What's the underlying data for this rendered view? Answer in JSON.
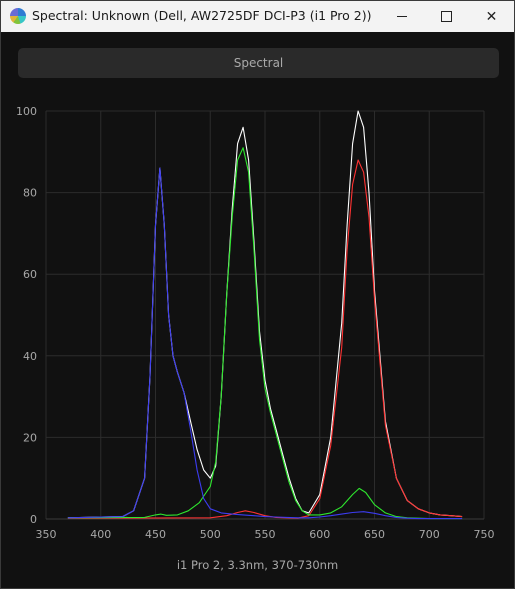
{
  "window": {
    "title": "Spectral: Unknown (Dell, AW2725DF DCI-P3 (i1 Pro 2))",
    "controls": [
      "minimize",
      "maximize",
      "close"
    ]
  },
  "tabs": [
    {
      "label": "Spectral",
      "selected": true
    }
  ],
  "chart_data": {
    "type": "line",
    "xlabel": "i1 Pro 2, 3.3nm, 370-730nm",
    "ylabel": "",
    "xlim": [
      350,
      750
    ],
    "ylim": [
      0,
      100
    ],
    "x_ticks": [
      350,
      400,
      450,
      500,
      550,
      600,
      650,
      700,
      750
    ],
    "y_ticks": [
      0,
      20,
      40,
      60,
      80,
      100
    ],
    "grid": true,
    "background": "#111111",
    "grid_color": "#2c2c2c",
    "series": [
      {
        "color": "#ffffff",
        "x": [
          370,
          420,
          430,
          440,
          445,
          450,
          454,
          458,
          462,
          466,
          470,
          476,
          482,
          488,
          494,
          500,
          505,
          510,
          515,
          520,
          525,
          530,
          535,
          540,
          545,
          550,
          555,
          560,
          566,
          572,
          578,
          584,
          590,
          600,
          610,
          620,
          625,
          630,
          635,
          640,
          645,
          650,
          660,
          670,
          680,
          690,
          700,
          710,
          720,
          730
        ],
        "y": [
          0.3,
          0.6,
          2,
          10,
          35,
          72,
          86,
          72,
          50,
          40,
          36,
          31,
          24,
          17,
          12,
          10,
          13,
          30,
          55,
          76,
          92,
          96,
          88,
          68,
          46,
          34,
          27,
          22,
          16,
          10,
          5,
          2,
          1.5,
          6,
          20,
          48,
          72,
          92,
          100,
          96,
          80,
          56,
          24,
          10,
          4.5,
          2.5,
          1.5,
          1,
          0.8,
          0.6
        ]
      },
      {
        "color": "#ff3232",
        "x": [
          370,
          500,
          515,
          525,
          532,
          540,
          550,
          560,
          580,
          590,
          600,
          610,
          620,
          625,
          630,
          635,
          640,
          645,
          650,
          660,
          670,
          680,
          690,
          700,
          710,
          720,
          730
        ],
        "y": [
          0.2,
          0.3,
          0.8,
          1.6,
          2,
          1.6,
          0.8,
          0.4,
          0.2,
          0.8,
          5,
          18,
          42,
          66,
          82,
          88,
          85,
          74,
          54,
          23,
          10,
          4.5,
          2.5,
          1.5,
          1,
          0.8,
          0.6
        ]
      },
      {
        "color": "#2ee62e",
        "x": [
          370,
          440,
          450,
          455,
          460,
          470,
          480,
          490,
          495,
          500,
          505,
          510,
          515,
          520,
          525,
          530,
          535,
          540,
          545,
          550,
          555,
          560,
          566,
          572,
          578,
          584,
          590,
          600,
          610,
          620,
          630,
          636,
          642,
          650,
          660,
          670,
          680,
          690,
          700,
          710,
          720,
          730
        ],
        "y": [
          0.3,
          0.4,
          1,
          1.2,
          0.9,
          1,
          2,
          4,
          6,
          8,
          14,
          30,
          55,
          74,
          88,
          91,
          85,
          66,
          44,
          32,
          26,
          21,
          15,
          9,
          4.5,
          2,
          1,
          1,
          1.5,
          3,
          6,
          7.5,
          6.5,
          3.5,
          1.5,
          0.6,
          0.3,
          0.2,
          0.1,
          0.1,
          0.1,
          0.1
        ]
      },
      {
        "color": "#3c3cf0",
        "x": [
          370,
          420,
          430,
          440,
          445,
          450,
          454,
          458,
          462,
          466,
          470,
          476,
          482,
          488,
          494,
          500,
          505,
          510,
          520,
          530,
          540,
          550,
          560,
          570,
          580,
          590,
          600,
          610,
          620,
          630,
          640,
          650,
          660,
          670,
          680,
          690,
          700,
          710,
          720,
          730
        ],
        "y": [
          0.3,
          0.6,
          2,
          10,
          35,
          72,
          86,
          72,
          50,
          40,
          36,
          31,
          22,
          12,
          5,
          2.5,
          2,
          1.5,
          1.2,
          1,
          0.8,
          0.6,
          0.5,
          0.4,
          0.3,
          0.3,
          0.5,
          0.8,
          1.2,
          1.6,
          1.8,
          1.4,
          0.8,
          0.4,
          0.2,
          0.1,
          0.1,
          0.1,
          0.1,
          0.1
        ]
      }
    ]
  }
}
